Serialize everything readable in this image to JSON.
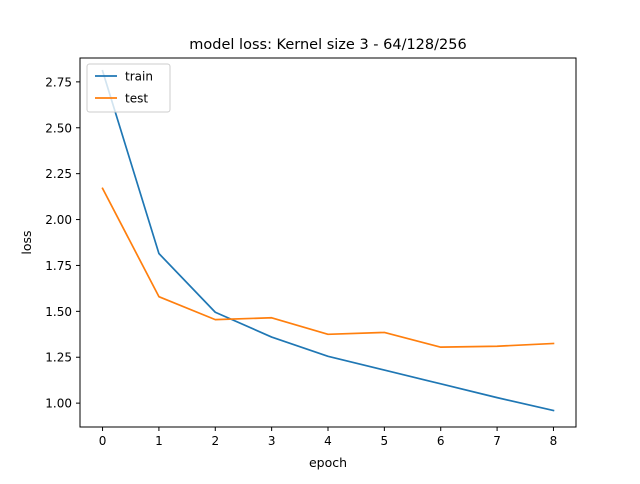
{
  "chart_data": {
    "type": "line",
    "title": "model loss: Kernel size 3 - 64/128/256",
    "xlabel": "epoch",
    "ylabel": "loss",
    "x": [
      0,
      1,
      2,
      3,
      4,
      5,
      6,
      7,
      8
    ],
    "xlim": [
      -0.4,
      8.4
    ],
    "ylim": [
      0.87,
      2.88
    ],
    "xticks": [
      0,
      1,
      2,
      3,
      4,
      5,
      6,
      7,
      8
    ],
    "xtick_labels": [
      "0",
      "1",
      "2",
      "3",
      "4",
      "5",
      "6",
      "7",
      "8"
    ],
    "yticks": [
      1.0,
      1.25,
      1.5,
      1.75,
      2.0,
      2.25,
      2.5,
      2.75
    ],
    "ytick_labels": [
      "1.00",
      "1.25",
      "1.50",
      "1.75",
      "2.00",
      "2.25",
      "2.50",
      "2.75"
    ],
    "grid": false,
    "legend_position": "upper-left",
    "series": [
      {
        "name": "train",
        "color": "#1f77b4",
        "values": [
          2.81,
          1.815,
          1.495,
          1.36,
          1.255,
          1.18,
          1.105,
          1.03,
          0.96
        ]
      },
      {
        "name": "test",
        "color": "#ff7f0e",
        "values": [
          2.17,
          1.58,
          1.455,
          1.465,
          1.375,
          1.385,
          1.305,
          1.31,
          1.325
        ]
      }
    ]
  }
}
